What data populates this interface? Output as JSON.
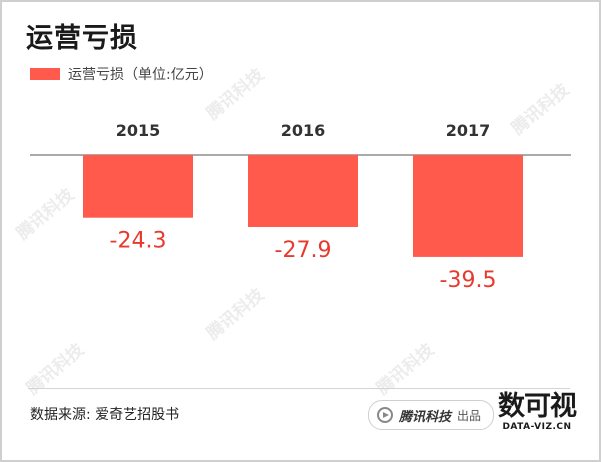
{
  "title": "运营亏损",
  "legend_label": "运营亏损（单位:亿元）",
  "watermark_text": "腾讯科技",
  "source": "数据来源: 爱奇艺招股书",
  "badge": {
    "brand": "腾讯科技",
    "suffix": "出品"
  },
  "logo": {
    "mark": "数可视",
    "text": "DATA-VIZ.CN"
  },
  "colors": {
    "bar": "#ff5a4c",
    "value_label": "#e8392d",
    "axis": "#555555",
    "year_label": "#333333"
  },
  "chart_data": {
    "type": "bar",
    "categories": [
      "2015",
      "2016",
      "2017"
    ],
    "series": [
      {
        "name": "运营亏损（单位:亿元）",
        "values": [
          -24.3,
          -27.9,
          -39.5
        ]
      }
    ],
    "value_labels": [
      "-24.3",
      "-27.9",
      "-39.5"
    ],
    "ylim": [
      -50,
      0
    ],
    "grid": false,
    "legend": "top-left"
  }
}
